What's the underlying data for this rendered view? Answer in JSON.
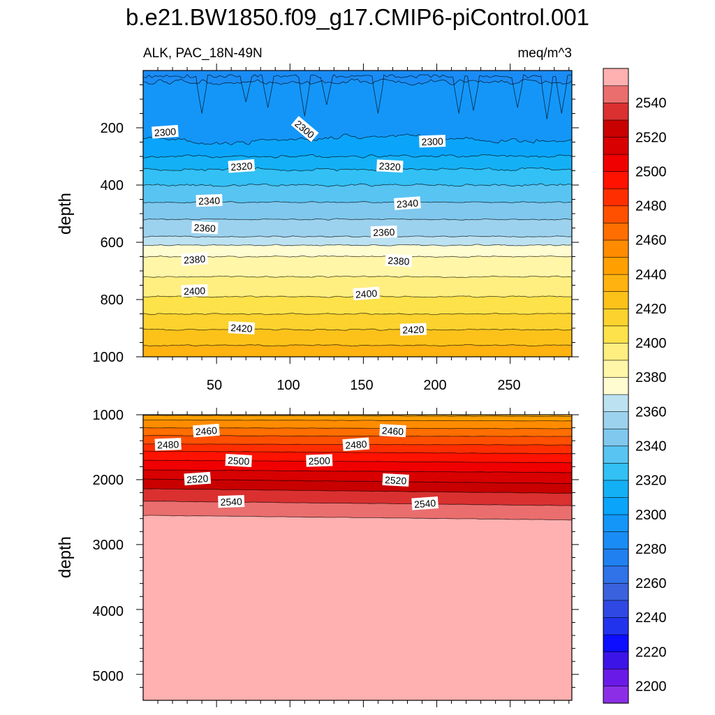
{
  "chart_data": {
    "type": "contour",
    "title": "b.e21.BW1850.f09_g17.CMIP6-piControl.001",
    "variable": "ALK, PAC_18N-49N",
    "units": "meq/m^3",
    "xlabel": "",
    "ylabel": "depth",
    "x_range": [
      0,
      292
    ],
    "x_ticks": [
      "50",
      "100",
      "150",
      "200",
      "250"
    ],
    "panels": [
      {
        "name": "upper",
        "ylim": [
          1000,
          0
        ],
        "y_ticks": [
          "200",
          "400",
          "600",
          "800",
          "1000"
        ],
        "contour_labels": [
          {
            "value": "2300",
            "x": 15,
            "depth": 215
          },
          {
            "value": "2300",
            "x": 110,
            "depth": 205
          },
          {
            "value": "2300",
            "x": 197,
            "depth": 248
          },
          {
            "value": "2320",
            "x": 67,
            "depth": 335
          },
          {
            "value": "2320",
            "x": 168,
            "depth": 335
          },
          {
            "value": "2340",
            "x": 45,
            "depth": 455
          },
          {
            "value": "2340",
            "x": 180,
            "depth": 465
          },
          {
            "value": "2360",
            "x": 42,
            "depth": 550
          },
          {
            "value": "2360",
            "x": 164,
            "depth": 565
          },
          {
            "value": "2380",
            "x": 35,
            "depth": 660
          },
          {
            "value": "2380",
            "x": 174,
            "depth": 665
          },
          {
            "value": "2400",
            "x": 35,
            "depth": 770
          },
          {
            "value": "2400",
            "x": 152,
            "depth": 780
          },
          {
            "value": "2420",
            "x": 67,
            "depth": 900
          },
          {
            "value": "2420",
            "x": 184,
            "depth": 905
          }
        ]
      },
      {
        "name": "lower",
        "ylim": [
          5400,
          1000
        ],
        "y_ticks": [
          "1000",
          "2000",
          "3000",
          "4000",
          "5000"
        ],
        "contour_labels": [
          {
            "value": "2460",
            "x": 43,
            "depth": 1250
          },
          {
            "value": "2460",
            "x": 170,
            "depth": 1250
          },
          {
            "value": "2480",
            "x": 17,
            "depth": 1460
          },
          {
            "value": "2480",
            "x": 145,
            "depth": 1460
          },
          {
            "value": "2500",
            "x": 65,
            "depth": 1710
          },
          {
            "value": "2500",
            "x": 120,
            "depth": 1710
          },
          {
            "value": "2520",
            "x": 37,
            "depth": 1990
          },
          {
            "value": "2520",
            "x": 172,
            "depth": 2010
          },
          {
            "value": "2540",
            "x": 60,
            "depth": 2340
          },
          {
            "value": "2540",
            "x": 192,
            "depth": 2370
          }
        ]
      }
    ],
    "colorbar": {
      "levels": [
        2200,
        2210,
        2220,
        2230,
        2240,
        2250,
        2260,
        2270,
        2280,
        2290,
        2300,
        2310,
        2320,
        2330,
        2340,
        2350,
        2360,
        2370,
        2380,
        2390,
        2400,
        2410,
        2420,
        2430,
        2440,
        2450,
        2460,
        2470,
        2480,
        2490,
        2500,
        2510,
        2520,
        2530,
        2540,
        2550
      ],
      "tick_labels": [
        "2200",
        "2220",
        "2240",
        "2260",
        "2280",
        "2300",
        "2320",
        "2340",
        "2360",
        "2380",
        "2400",
        "2420",
        "2440",
        "2460",
        "2480",
        "2500",
        "2520",
        "2540"
      ],
      "colors": [
        "#8c2ee6",
        "#6a1ae6",
        "#3c14e8",
        "#0d0dff",
        "#2233ee",
        "#2f48e3",
        "#3a62de",
        "#3072e8",
        "#2180f0",
        "#1a8cf5",
        "#1496f8",
        "#0aa5fa",
        "#14b0f5",
        "#32c0f5",
        "#58c4f2",
        "#80c8ee",
        "#9cd2ee",
        "#bce2f2",
        "#fffcd2",
        "#fff6a8",
        "#ffee80",
        "#fde24a",
        "#fbd22e",
        "#fcc21a",
        "#ffb210",
        "#ffa000",
        "#ff8c00",
        "#ff6e00",
        "#ff5000",
        "#ff2e00",
        "#ff1200",
        "#f00000",
        "#d80000",
        "#c80000",
        "#da3030",
        "#ea6e6e",
        "#ffb0b0"
      ]
    }
  }
}
